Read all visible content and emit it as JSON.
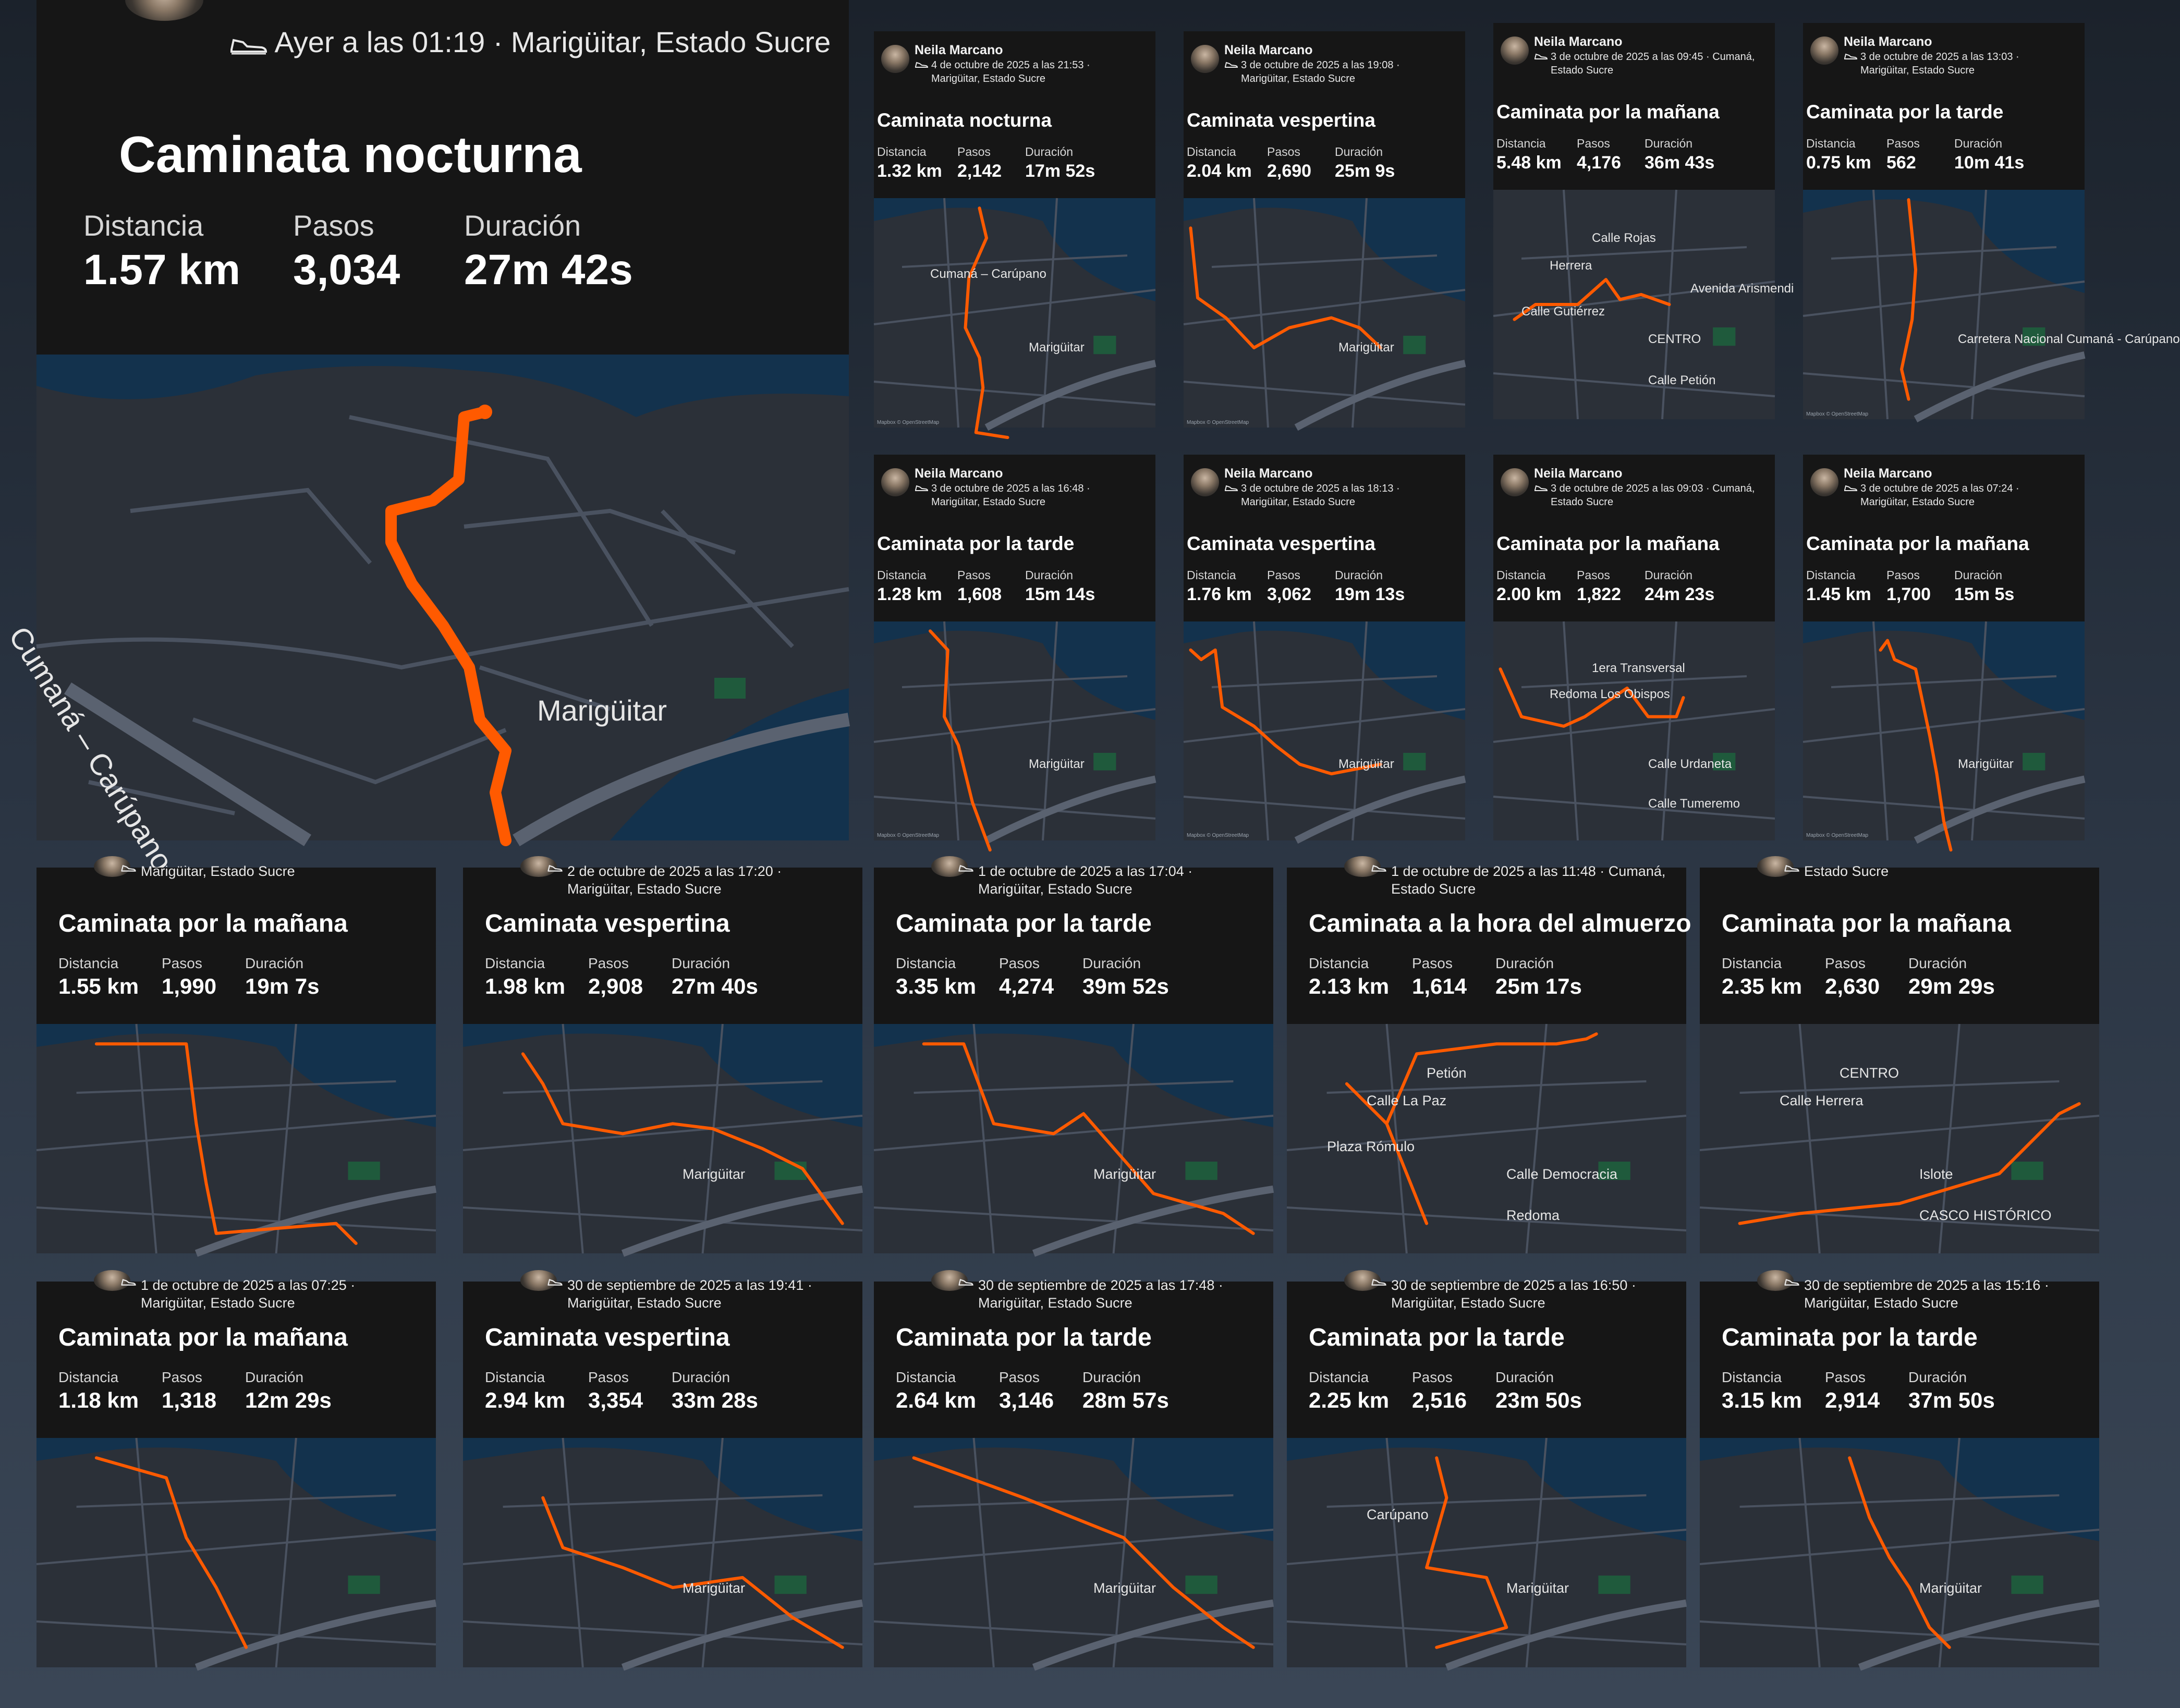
{
  "accent": "#ff5a00",
  "labels": {
    "distance": "Distancia",
    "steps": "Pasos",
    "duration": "Duración"
  },
  "featured": {
    "meta": "Ayer a las 01:19 · Marigüitar, Estado Sucre",
    "title": "Caminata nocturna",
    "distance": "1.57 km",
    "steps": "3,034",
    "duration": "27m 42s",
    "map_labels": [
      "Cumaná – Carúpano",
      "Marigüitar"
    ]
  },
  "activities": [
    {
      "owner": "Neila Marcano",
      "meta": [
        "4 de octubre de 2025 a las 21:53 ·",
        "Marigüitar, Estado Sucre"
      ],
      "title": "Caminata nocturna",
      "distance": "1.32 km",
      "steps": "2,142",
      "duration": "17m 52s",
      "map_labels": [
        "Marigüitar",
        "Cumaná – Carúpano"
      ],
      "attribution": "Mapbox © OpenStreetMap"
    },
    {
      "owner": "Neila Marcano",
      "meta": [
        "3 de octubre de 2025 a las 19:08 ·",
        "Marigüitar, Estado Sucre"
      ],
      "title": "Caminata vespertina",
      "distance": "2.04 km",
      "steps": "2,690",
      "duration": "25m 9s",
      "map_labels": [
        "Marigüitar"
      ],
      "attribution": "Mapbox © OpenStreetMap"
    },
    {
      "owner": "Neila Marcano",
      "meta": [
        "3 de octubre de 2025 a las 09:45 · Cumaná,",
        "Estado Sucre"
      ],
      "title": "Caminata por la mañana",
      "distance": "5.48 km",
      "steps": "4,176",
      "duration": "36m 43s",
      "map_labels": [
        "CENTRO",
        "Herrera",
        "Calle Rojas",
        "Calle Petión",
        "Calle Gutiérrez",
        "Avenida Arismendi"
      ],
      "attribution": ""
    },
    {
      "owner": "Neila Marcano",
      "meta": [
        "3 de octubre de 2025 a las 13:03 ·",
        "Marigüitar, Estado Sucre"
      ],
      "title": "Caminata por la tarde",
      "distance": "0.75 km",
      "steps": "562",
      "duration": "10m 41s",
      "map_labels": [
        "Carretera Nacional Cumaná - Carúpano"
      ],
      "attribution": "Mapbox © OpenStreetMap"
    },
    {
      "owner": "Neila Marcano",
      "meta": [
        "3 de octubre de 2025 a las 16:48 ·",
        "Marigüitar, Estado Sucre"
      ],
      "title": "Caminata por la tarde",
      "distance": "1.28 km",
      "steps": "1,608",
      "duration": "15m 14s",
      "map_labels": [
        "Marigüitar"
      ],
      "attribution": "Mapbox © OpenStreetMap"
    },
    {
      "owner": "Neila Marcano",
      "meta": [
        "3 de octubre de 2025 a las 18:13 ·",
        "Marigüitar, Estado Sucre"
      ],
      "title": "Caminata vespertina",
      "distance": "1.76 km",
      "steps": "3,062",
      "duration": "19m 13s",
      "map_labels": [
        "Marigüitar"
      ],
      "attribution": "Mapbox © OpenStreetMap"
    },
    {
      "owner": "Neila Marcano",
      "meta": [
        "3 de octubre de 2025 a las 09:03 · Cumaná,",
        "Estado Sucre"
      ],
      "title": "Caminata por la mañana",
      "distance": "2.00 km",
      "steps": "1,822",
      "duration": "24m 23s",
      "map_labels": [
        "Calle Urdaneta",
        "Redoma Los Obispos",
        "1era Transversal",
        "Calle Tumeremo"
      ],
      "attribution": ""
    },
    {
      "owner": "Neila Marcano",
      "meta": [
        "3 de octubre de 2025 a las 07:24 ·",
        "Marigüitar, Estado Sucre"
      ],
      "title": "Caminata por la mañana",
      "distance": "1.45 km",
      "steps": "1,700",
      "duration": "15m 5s",
      "map_labels": [
        "Marigüitar"
      ],
      "attribution": "Mapbox © OpenStreetMap"
    },
    {
      "meta": [
        "Marigüitar, Estado Sucre"
      ],
      "title": "Caminata por la mañana",
      "distance": "1.55 km",
      "steps": "1,990",
      "duration": "19m 7s",
      "map_labels": []
    },
    {
      "meta": [
        "2 de octubre de 2025 a las 17:20 ·",
        "Marigüitar, Estado Sucre"
      ],
      "title": "Caminata vespertina",
      "distance": "1.98 km",
      "steps": "2,908",
      "duration": "27m 40s",
      "map_labels": [
        "Marigüitar"
      ]
    },
    {
      "meta": [
        "1 de octubre de 2025 a las 17:04 ·",
        "Marigüitar, Estado Sucre"
      ],
      "title": "Caminata por la tarde",
      "distance": "3.35 km",
      "steps": "4,274",
      "duration": "39m 52s",
      "map_labels": [
        "Marigüitar"
      ]
    },
    {
      "meta": [
        "1 de octubre de 2025 a las 11:48 · Cumaná,",
        "Estado Sucre"
      ],
      "title": "Caminata a la hora del almuerzo",
      "distance": "2.13 km",
      "steps": "1,614",
      "duration": "25m 17s",
      "map_labels": [
        "Calle Democracia",
        "Calle La Paz",
        "Petión",
        "Redoma",
        "Plaza Rómulo"
      ]
    },
    {
      "meta": [
        "Estado Sucre"
      ],
      "title": "Caminata por la mañana",
      "distance": "2.35 km",
      "steps": "2,630",
      "duration": "29m 29s",
      "map_labels": [
        "Islote",
        "Calle Herrera",
        "CENTRO",
        "CASCO HISTÓRICO"
      ]
    },
    {
      "meta": [
        "1 de octubre de 2025 a las 07:25 ·",
        "Marigüitar, Estado Sucre"
      ],
      "title": "Caminata por la mañana",
      "distance": "1.18 km",
      "steps": "1,318",
      "duration": "12m 29s",
      "map_labels": []
    },
    {
      "meta": [
        "30 de septiembre de 2025 a las 19:41 ·",
        "Marigüitar, Estado Sucre"
      ],
      "title": "Caminata vespertina",
      "distance": "2.94 km",
      "steps": "3,354",
      "duration": "33m 28s",
      "map_labels": [
        "Marigüitar"
      ]
    },
    {
      "meta": [
        "30 de septiembre de 2025 a las 17:48 ·",
        "Marigüitar, Estado Sucre"
      ],
      "title": "Caminata por la tarde",
      "distance": "2.64 km",
      "steps": "3,146",
      "duration": "28m 57s",
      "map_labels": [
        "Marigüitar"
      ]
    },
    {
      "meta": [
        "30 de septiembre de 2025 a las 16:50 ·",
        "Marigüitar, Estado Sucre"
      ],
      "title": "Caminata por la tarde",
      "distance": "2.25 km",
      "steps": "2,516",
      "duration": "23m 50s",
      "map_labels": [
        "Marigüitar",
        "Carúpano"
      ]
    },
    {
      "meta": [
        "30 de septiembre de 2025 a las 15:16 ·",
        "Marigüitar, Estado Sucre"
      ],
      "title": "Caminata por la tarde",
      "distance": "3.15 km",
      "steps": "2,914",
      "duration": "37m 50s",
      "map_labels": [
        "Marigüitar"
      ]
    }
  ]
}
